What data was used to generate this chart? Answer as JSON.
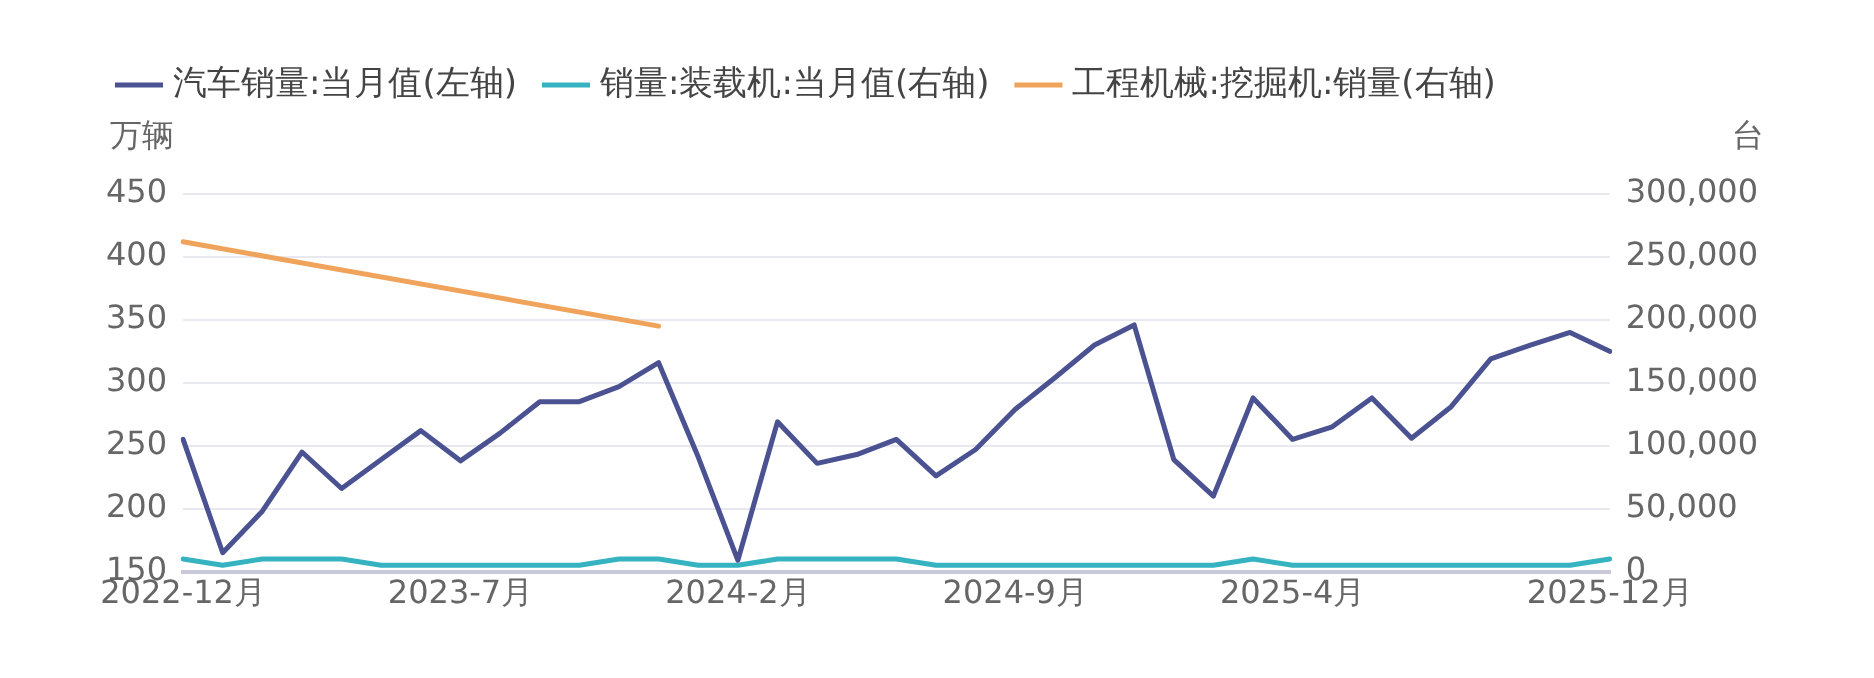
{
  "chart_data": {
    "type": "line",
    "ylabel": "万辆",
    "y2label": "台",
    "legend": "top left",
    "grid": "y",
    "marker": "none",
    "categories": [
      "2022-12月",
      null,
      null,
      null,
      null,
      null,
      null,
      "2023-7月",
      null,
      null,
      null,
      null,
      null,
      null,
      "2024-2月",
      null,
      null,
      null,
      null,
      null,
      null,
      "2024-9月",
      null,
      null,
      null,
      null,
      null,
      null,
      "2025-4月",
      null,
      null,
      null,
      null,
      null,
      null,
      null,
      "2025-12月"
    ],
    "series": [
      {
        "name": "汽车销量:当月值(左轴)",
        "color": "#4b5291",
        "axis": "y",
        "values": [
          255,
          165,
          198,
          245,
          216,
          239,
          262,
          238,
          260,
          285,
          285,
          297,
          316,
          241,
          159,
          269,
          236,
          243,
          255,
          226,
          247,
          279,
          304,
          330,
          346,
          239,
          210,
          288,
          255,
          265,
          288,
          256,
          281,
          319,
          330,
          340,
          325
        ]
      },
      {
        "name": "销量:装载机:当月值(右轴)",
        "color": "#36b3c1",
        "axis": "y2",
        "values": [
          10000,
          5000,
          10000,
          10000,
          10000,
          5000,
          5000,
          5000,
          5000,
          5000,
          5000,
          10000,
          10000,
          5000,
          5000,
          10000,
          10000,
          10000,
          10000,
          5000,
          5000,
          5000,
          5000,
          5000,
          5000,
          5000,
          5000,
          10000,
          5000,
          5000,
          5000,
          5000,
          5000,
          5000,
          5000,
          5000,
          10000
        ]
      },
      {
        "name": "工程机械:挖掘机:销量(右轴)",
        "color": "#f0a35a",
        "axis": "y2",
        "values": [
          262000,
          null,
          null,
          null,
          null,
          null,
          null,
          null,
          null,
          null,
          null,
          null,
          195000,
          null,
          null,
          null,
          null,
          null,
          null,
          null,
          null,
          null,
          null,
          null,
          null,
          null,
          null,
          null,
          null,
          null,
          null,
          null,
          null,
          null,
          null,
          null,
          null
        ]
      }
    ],
    "ylim": [
      150,
      450
    ],
    "yticks": [
      150,
      200,
      250,
      300,
      350,
      400,
      450
    ],
    "y2lim": [
      0,
      300000
    ],
    "y2ticks": [
      0,
      {
        "value": 50000,
        "label": "50,000"
      },
      {
        "value": 100000,
        "label": "100,000"
      },
      {
        "value": 150000,
        "label": "150,000"
      },
      {
        "value": 200000,
        "label": "200,000"
      },
      {
        "value": 250000,
        "label": "250,000"
      },
      {
        "value": 300000,
        "label": "300,000"
      }
    ]
  }
}
